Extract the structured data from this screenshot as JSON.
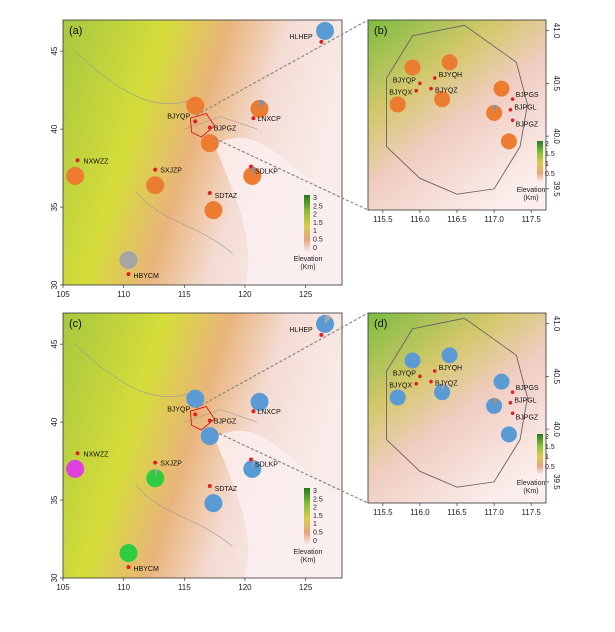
{
  "panels": [
    {
      "label": "(a)"
    },
    {
      "label": "(b)"
    },
    {
      "label": "(c)"
    },
    {
      "label": "(d)"
    }
  ],
  "large_map": {
    "x_ticks": [
      "105",
      "110",
      "115",
      "120",
      "125"
    ],
    "y_ticks": [
      "45",
      "40",
      "35",
      "30"
    ],
    "stations": [
      "HLHEP",
      "BJYQP",
      "BJPGZ",
      "LNXCP",
      "NXWZZ",
      "SXJZP",
      "SDLKP",
      "SDTAZ",
      "HBYCM"
    ]
  },
  "zoom_map": {
    "x_ticks": [
      "115.5",
      "116.0",
      "116.5",
      "117.0",
      "117.5"
    ],
    "y_ticks": [
      "41.0",
      "40.5",
      "40.0",
      "39.5"
    ],
    "stations": [
      "BJYQP",
      "BJYQH",
      "BJYQX",
      "BJYQZ",
      "BJPGS",
      "BJPGL",
      "BJPGZ"
    ]
  },
  "legend_large": {
    "ticks": [
      "3",
      "2.5",
      "2",
      "1.5",
      "1",
      "0.5",
      "0"
    ],
    "title": "Elevation",
    "unit": "(Km)"
  },
  "legend_zoom": {
    "ticks": [
      "2",
      "1.5",
      "1",
      "0.5"
    ],
    "title": "Elevation",
    "unit": "(Km)"
  },
  "colors": {
    "orange": "#EC7C30",
    "grey": "#A5A5A5",
    "blue": "#5B9BD5",
    "green": "#2ECC40",
    "magenta": "#E040E0",
    "station": "#E02020"
  }
}
